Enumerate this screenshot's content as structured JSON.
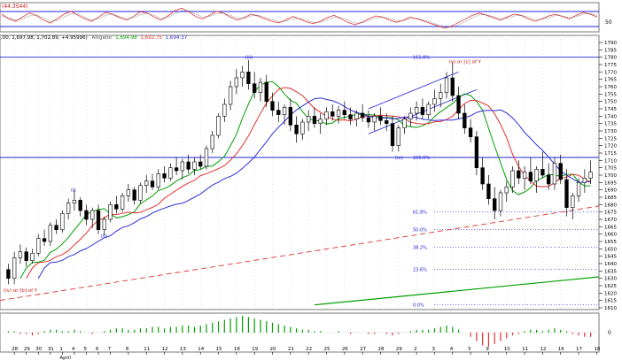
{
  "colors": {
    "background": "#ffffff",
    "panel_border": "#7a7a7a",
    "grid": "#c8c8c8",
    "candle": "#000000",
    "ma_fast": "#00a000",
    "ma_mid": "#e03030",
    "ma_slow": "#3030d8",
    "fib": "#2020e0",
    "trend_red": "#e03030",
    "trend_green": "#00a000",
    "wave_label": "#2020c8",
    "wave_label_red": "#d01010",
    "osc_up": "#00a000",
    "osc_down": "#e03030"
  },
  "top_panel": {
    "label": "(44.3544)",
    "right_tick": "50",
    "series_a": [
      60,
      52,
      48,
      55,
      62,
      58,
      50,
      45,
      52,
      60,
      65,
      58,
      52,
      48,
      55,
      63,
      60,
      54,
      50,
      56,
      64,
      62,
      55,
      50,
      57,
      66,
      70,
      64,
      56,
      52,
      58,
      65,
      62,
      55,
      50,
      54,
      60,
      57,
      52,
      48,
      45,
      50,
      56,
      52,
      47,
      44,
      48,
      54,
      58,
      52,
      46,
      42,
      46,
      52,
      57,
      55,
      50,
      46,
      50,
      55,
      52,
      48,
      44,
      40,
      36,
      40,
      46,
      52,
      58,
      62,
      58,
      54,
      50,
      55,
      60,
      58,
      52,
      48,
      52,
      57,
      60,
      56,
      52,
      58,
      63,
      60,
      55
    ],
    "series_b": [
      56,
      54,
      50,
      52,
      57,
      58,
      54,
      48,
      49,
      55,
      61,
      60,
      55,
      50,
      52,
      58,
      60,
      56,
      52,
      54,
      59,
      61,
      58,
      53,
      54,
      61,
      66,
      66,
      60,
      55,
      56,
      61,
      62,
      58,
      53,
      53,
      57,
      58,
      55,
      51,
      47,
      48,
      52,
      53,
      50,
      46,
      46,
      50,
      55,
      54,
      50,
      45,
      45,
      49,
      53,
      55,
      53,
      49,
      49,
      52,
      53,
      50,
      46,
      42,
      38,
      38,
      42,
      48,
      54,
      59,
      59,
      56,
      52,
      53,
      57,
      58,
      55,
      51,
      51,
      54,
      58,
      57,
      54,
      56,
      60,
      61,
      58
    ]
  },
  "main_panel": {
    "info_text": ",00, 1,697.98, 1,702.89, +4.95996)",
    "ma_text_1": "1,694.98",
    "ma_text_2": "1,692.75",
    "ma_text_3": "1,694.37",
    "ma_prefix": "Alligator",
    "y_ticks": [
      "1790",
      "1785",
      "1780",
      "1775",
      "1770",
      "1765",
      "1760",
      "1755",
      "1750",
      "1745",
      "1740",
      "1735",
      "1730",
      "1725",
      "1720",
      "1715",
      "1710",
      "1705",
      "1700",
      "1695",
      "1690",
      "1685",
      "1680",
      "1675",
      "1670",
      "1665",
      "1660",
      "1655",
      "1650",
      "1645",
      "1640",
      "1635",
      "1630",
      "1625",
      "1620",
      "1615",
      "1610"
    ],
    "fib_levels": [
      {
        "label": "161.8%",
        "value": 1780
      },
      {
        "label": "100.0%",
        "value": 1712
      },
      {
        "label": "61.8%",
        "value": 1675
      },
      {
        "label": "50.0%",
        "value": 1663
      },
      {
        "label": "38.2%",
        "value": 1651
      },
      {
        "label": "23.6%",
        "value": 1636
      },
      {
        "label": "0.0%",
        "value": 1612
      }
    ],
    "wave_labels": [
      {
        "text": "(i)",
        "index": 11,
        "value": 1690,
        "color": "blue"
      },
      {
        "text": "(ii)",
        "index": 16,
        "value": 1659,
        "color": "blue"
      },
      {
        "text": "(iii)",
        "index": 40,
        "value": 1780,
        "color": "blue"
      },
      {
        "text": "(iv)",
        "index": 65,
        "value": 1712,
        "color": "blue"
      },
      {
        "text": "(v) or [c] of Y",
        "index": 74,
        "value": 1777,
        "color": "red"
      },
      {
        "text": "(iv) or [b] of Y",
        "index": 0,
        "value": 1622,
        "color": "red"
      }
    ]
  },
  "chart_data": {
    "type": "candlestick",
    "ylim": [
      1610,
      1790
    ],
    "candles": [
      [
        1636,
        1640,
        1626,
        1630
      ],
      [
        1630,
        1648,
        1626,
        1644
      ],
      [
        1644,
        1653,
        1640,
        1648
      ],
      [
        1648,
        1651,
        1638,
        1642
      ],
      [
        1642,
        1650,
        1640,
        1647
      ],
      [
        1647,
        1660,
        1645,
        1657
      ],
      [
        1657,
        1663,
        1652,
        1655
      ],
      [
        1655,
        1668,
        1652,
        1666
      ],
      [
        1666,
        1670,
        1660,
        1663
      ],
      [
        1663,
        1676,
        1661,
        1674
      ],
      [
        1674,
        1684,
        1670,
        1681
      ],
      [
        1681,
        1690,
        1676,
        1683
      ],
      [
        1683,
        1685,
        1672,
        1676
      ],
      [
        1676,
        1680,
        1666,
        1670
      ],
      [
        1670,
        1678,
        1664,
        1676
      ],
      [
        1676,
        1680,
        1660,
        1663
      ],
      [
        1663,
        1672,
        1659,
        1670
      ],
      [
        1670,
        1682,
        1668,
        1680
      ],
      [
        1680,
        1686,
        1674,
        1677
      ],
      [
        1677,
        1688,
        1675,
        1686
      ],
      [
        1686,
        1694,
        1682,
        1690
      ],
      [
        1690,
        1692,
        1680,
        1683
      ],
      [
        1683,
        1695,
        1681,
        1693
      ],
      [
        1693,
        1700,
        1688,
        1696
      ],
      [
        1696,
        1701,
        1690,
        1692
      ],
      [
        1692,
        1704,
        1690,
        1701
      ],
      [
        1701,
        1706,
        1695,
        1698
      ],
      [
        1698,
        1708,
        1696,
        1705
      ],
      [
        1705,
        1712,
        1700,
        1703
      ],
      [
        1703,
        1711,
        1697,
        1709
      ],
      [
        1709,
        1714,
        1701,
        1704
      ],
      [
        1704,
        1712,
        1700,
        1709
      ],
      [
        1709,
        1714,
        1704,
        1706
      ],
      [
        1706,
        1720,
        1704,
        1718
      ],
      [
        1718,
        1730,
        1715,
        1727
      ],
      [
        1727,
        1742,
        1725,
        1740
      ],
      [
        1740,
        1752,
        1736,
        1748
      ],
      [
        1748,
        1764,
        1744,
        1760
      ],
      [
        1760,
        1772,
        1755,
        1766
      ],
      [
        1766,
        1774,
        1760,
        1770
      ],
      [
        1770,
        1778,
        1758,
        1762
      ],
      [
        1762,
        1770,
        1752,
        1756
      ],
      [
        1756,
        1766,
        1750,
        1763
      ],
      [
        1763,
        1768,
        1746,
        1750
      ],
      [
        1750,
        1756,
        1740,
        1744
      ],
      [
        1744,
        1750,
        1736,
        1741
      ],
      [
        1741,
        1748,
        1734,
        1746
      ],
      [
        1746,
        1752,
        1730,
        1734
      ],
      [
        1734,
        1740,
        1722,
        1728
      ],
      [
        1728,
        1738,
        1724,
        1736
      ],
      [
        1736,
        1744,
        1730,
        1740
      ],
      [
        1740,
        1746,
        1732,
        1735
      ],
      [
        1735,
        1742,
        1728,
        1738
      ],
      [
        1738,
        1746,
        1734,
        1743
      ],
      [
        1743,
        1748,
        1737,
        1740
      ],
      [
        1740,
        1747,
        1735,
        1744
      ],
      [
        1744,
        1750,
        1738,
        1741
      ],
      [
        1741,
        1746,
        1734,
        1738
      ],
      [
        1738,
        1744,
        1733,
        1742
      ],
      [
        1742,
        1748,
        1736,
        1739
      ],
      [
        1739,
        1744,
        1732,
        1736
      ],
      [
        1736,
        1742,
        1730,
        1740
      ],
      [
        1740,
        1746,
        1734,
        1737
      ],
      [
        1737,
        1742,
        1730,
        1735
      ],
      [
        1735,
        1740,
        1716,
        1720
      ],
      [
        1720,
        1734,
        1716,
        1732
      ],
      [
        1732,
        1740,
        1728,
        1738
      ],
      [
        1738,
        1746,
        1733,
        1742
      ],
      [
        1742,
        1750,
        1737,
        1746
      ],
      [
        1746,
        1752,
        1738,
        1741
      ],
      [
        1741,
        1750,
        1738,
        1748
      ],
      [
        1748,
        1758,
        1743,
        1752
      ],
      [
        1752,
        1762,
        1746,
        1756
      ],
      [
        1756,
        1770,
        1752,
        1766
      ],
      [
        1766,
        1777,
        1750,
        1754
      ],
      [
        1754,
        1760,
        1738,
        1742
      ],
      [
        1742,
        1748,
        1728,
        1732
      ],
      [
        1732,
        1738,
        1722,
        1726
      ],
      [
        1726,
        1730,
        1700,
        1705
      ],
      [
        1705,
        1712,
        1690,
        1694
      ],
      [
        1694,
        1700,
        1680,
        1684
      ],
      [
        1684,
        1692,
        1670,
        1676
      ],
      [
        1676,
        1690,
        1672,
        1688
      ],
      [
        1688,
        1696,
        1682,
        1692
      ],
      [
        1692,
        1706,
        1688,
        1703
      ],
      [
        1703,
        1710,
        1694,
        1698
      ],
      [
        1698,
        1706,
        1690,
        1702
      ],
      [
        1702,
        1712,
        1694,
        1696
      ],
      [
        1696,
        1706,
        1688,
        1704
      ],
      [
        1704,
        1716,
        1698,
        1700
      ],
      [
        1700,
        1708,
        1690,
        1694
      ],
      [
        1694,
        1712,
        1690,
        1708
      ],
      [
        1708,
        1714,
        1694,
        1697
      ],
      [
        1697,
        1704,
        1672,
        1678
      ],
      [
        1678,
        1688,
        1670,
        1686
      ],
      [
        1686,
        1698,
        1682,
        1695
      ],
      [
        1695,
        1704,
        1688,
        1698
      ],
      [
        1698,
        1710,
        1694,
        1702
      ]
    ],
    "x_tick_labels": [
      {
        "label": "28",
        "index": 1
      },
      {
        "label": "29",
        "index": 3
      },
      {
        "label": "30",
        "index": 5
      },
      {
        "label": "31",
        "index": 7
      },
      {
        "label": "1",
        "index": 9
      },
      {
        "label": "4",
        "index": 11
      },
      {
        "label": "5",
        "index": 13
      },
      {
        "label": "6",
        "index": 15
      },
      {
        "label": "7",
        "index": 17
      },
      {
        "label": "8",
        "index": 20
      },
      {
        "label": "11",
        "index": 23
      },
      {
        "label": "12",
        "index": 26
      },
      {
        "label": "13",
        "index": 29
      },
      {
        "label": "14",
        "index": 32
      },
      {
        "label": "15",
        "index": 35
      },
      {
        "label": "18",
        "index": 38
      },
      {
        "label": "19",
        "index": 41
      },
      {
        "label": "20",
        "index": 44
      },
      {
        "label": "21",
        "index": 47
      },
      {
        "label": "22",
        "index": 50
      },
      {
        "label": "25",
        "index": 53
      },
      {
        "label": "26",
        "index": 56
      },
      {
        "label": "27",
        "index": 59
      },
      {
        "label": "28",
        "index": 62
      },
      {
        "label": "29",
        "index": 65
      },
      {
        "label": "2",
        "index": 68
      },
      {
        "label": "3",
        "index": 71
      },
      {
        "label": "4",
        "index": 74
      },
      {
        "label": "5",
        "index": 77
      },
      {
        "label": "9",
        "index": 80
      },
      {
        "label": "10",
        "index": 83
      },
      {
        "label": "11",
        "index": 86
      },
      {
        "label": "12",
        "index": 89
      },
      {
        "label": "16",
        "index": 92
      },
      {
        "label": "17",
        "index": 95
      },
      {
        "label": "18",
        "index": 98
      }
    ],
    "month_label": "April",
    "month_label_index": 9,
    "oscillator": [
      1,
      1,
      -1,
      -1,
      -2,
      -1,
      1,
      2,
      2,
      1,
      1,
      2,
      1,
      0,
      -1,
      0,
      1,
      2,
      3,
      3,
      2,
      2,
      3,
      3,
      4,
      4,
      3,
      4,
      4,
      5,
      5,
      4,
      5,
      6,
      7,
      8,
      9,
      10,
      11,
      12,
      11,
      10,
      9,
      8,
      7,
      6,
      5,
      4,
      3,
      2,
      2,
      1,
      1,
      0,
      0,
      1,
      0,
      -1,
      0,
      0,
      -1,
      -1,
      0,
      -1,
      -2,
      -1,
      0,
      1,
      2,
      2,
      2,
      3,
      4,
      5,
      4,
      2,
      0,
      -3,
      -6,
      -9,
      -10,
      -8,
      -6,
      -4,
      -2,
      -1,
      1,
      2,
      2,
      1,
      2,
      3,
      2,
      1,
      -1,
      -2,
      -3,
      -3
    ]
  }
}
